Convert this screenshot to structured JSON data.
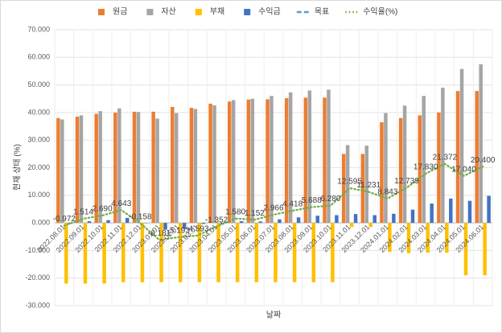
{
  "chart_data": {
    "type": "bar",
    "x_label": "날짜",
    "y_label": "현재 상태 (%)",
    "categories": [
      "2022.08.01",
      "2022.09.01",
      "2022.10.01",
      "2022.11.01",
      "2022.12.01",
      "2023.01.01",
      "2023.02.01",
      "2023.03.01",
      "2023.04.01",
      "2023.05.01",
      "2023.06.01",
      "2023.07.01",
      "2023.08.01",
      "2023.09.01",
      "2023.10.01",
      "2023.11.01",
      "2023.12.01",
      "2024.01.01",
      "2024.02.01",
      "2024.03.01",
      "2024.04.01",
      "2024.05.01",
      "2024.06.01"
    ],
    "series": [
      {
        "name": "원금",
        "color": "#ed7d31",
        "values": [
          38,
          38.5,
          39.5,
          40,
          40.3,
          40.3,
          42,
          41.7,
          43.2,
          44,
          44.7,
          44.8,
          45.2,
          45.4,
          45.4,
          25,
          25,
          36.5,
          38,
          39,
          40,
          47.8,
          47.8
        ]
      },
      {
        "name": "자산",
        "color": "#a5a5a5",
        "values": [
          37.5,
          39,
          40.5,
          41.5,
          40.2,
          37.8,
          39.8,
          41.3,
          42.6,
          44.5,
          45,
          46,
          47.3,
          48,
          48.3,
          28.2,
          28,
          39.8,
          42.5,
          46,
          49,
          55.8,
          57.5
        ]
      },
      {
        "name": "부채",
        "color": "#ffc000",
        "values": [
          -22,
          -22,
          -22,
          -21.5,
          -21.5,
          -21.5,
          -21.5,
          -21.5,
          -21.5,
          -21.5,
          -21.5,
          -21.5,
          -21.5,
          -21.5,
          -21.5,
          -1.5,
          -1.5,
          -10.5,
          -11,
          -10.8,
          -10.8,
          -19,
          -19
        ]
      },
      {
        "name": "수익금",
        "color": "#4472c4",
        "values": [
          -0.4,
          0.6,
          1,
          1.8,
          -0.1,
          -2.5,
          -2.2,
          -0.4,
          -0.6,
          0.6,
          0.5,
          1.3,
          2,
          2.6,
          2.8,
          3.2,
          2.8,
          3.3,
          4.8,
          7,
          8.8,
          8,
          9.8
        ]
      },
      {
        "name": "목표",
        "color": "#5b9bd5",
        "line": "dashed",
        "values": [
          null,
          null,
          null,
          null,
          null,
          null,
          null,
          null,
          null,
          null,
          null,
          null,
          null,
          null,
          null,
          null,
          null,
          null,
          null,
          null,
          null,
          null,
          null
        ]
      },
      {
        "name": "수익율(%)",
        "color": "#70ad47",
        "line": "dotted",
        "values": [
          -0.972,
          1.514,
          2.69,
          4.643,
          -0.158,
          -6.181,
          -5.193,
          -4.593,
          -1.352,
          1.58,
          1.152,
          2.966,
          4.418,
          5.688,
          6.28,
          12.595,
          11.231,
          8.843,
          12.739,
          17.83,
          21.372,
          17.04,
          20.4
        ],
        "value_labels": [
          "-0.972",
          "1.514",
          "2.690",
          "4.643",
          "-0.158",
          "-6.181",
          "-5.193",
          "-4.593",
          "-1.352",
          "1.580",
          "1.152",
          "2.966",
          "4.418",
          "5.688",
          "6.280",
          "12.595",
          "11.231",
          "8.843",
          "12.739",
          "17.830",
          "21.372",
          "17.040",
          "20.400"
        ]
      }
    ],
    "ylim": [
      -30,
      70
    ],
    "yticks": [
      {
        "value": -30,
        "label": "-30.000"
      },
      {
        "value": -20,
        "label": "-20.000"
      },
      {
        "value": -10,
        "label": "-10.000"
      },
      {
        "value": 0,
        "label": "0.000"
      },
      {
        "value": 10,
        "label": "10.000"
      },
      {
        "value": 20,
        "label": "20.000"
      },
      {
        "value": 30,
        "label": "30.000"
      },
      {
        "value": 40,
        "label": "40.000"
      },
      {
        "value": 50,
        "label": "50.000"
      },
      {
        "value": 60,
        "label": "60.000"
      },
      {
        "value": 70,
        "label": "70.000"
      }
    ],
    "grid": true,
    "legend": "top"
  }
}
